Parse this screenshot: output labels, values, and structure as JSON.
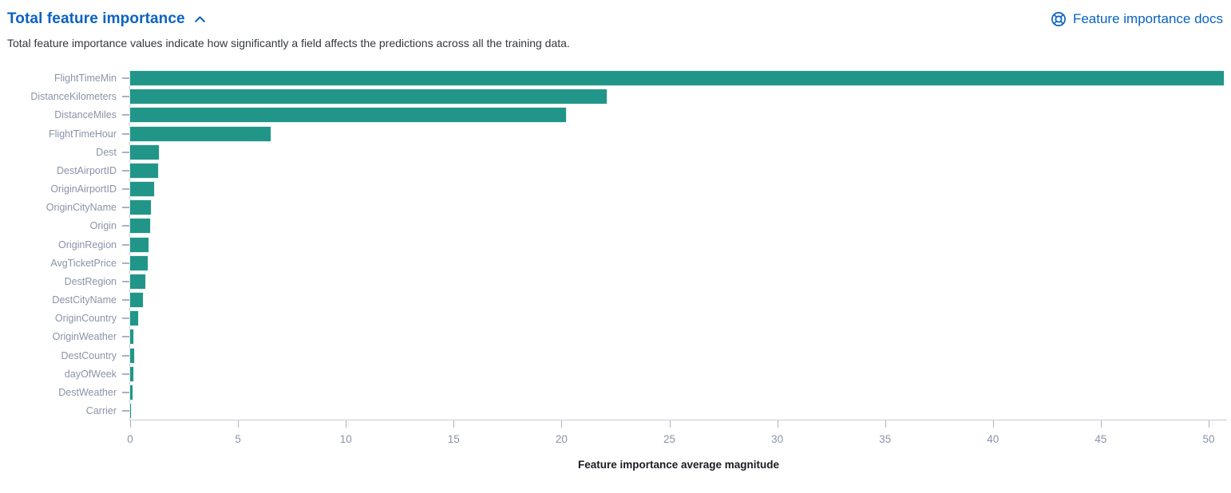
{
  "header": {
    "title": "Total feature importance",
    "collapse_icon": "chevron-up-icon",
    "docs_link_label": "Feature importance docs",
    "docs_icon": "help-docs-icon",
    "link_color": "#0a62c2"
  },
  "description": "Total feature importance values indicate how significantly a field affects the predictions across all the training data.",
  "chart_data": {
    "type": "bar",
    "orientation": "horizontal",
    "title": "",
    "xlabel": "Feature importance average magnitude",
    "ylabel": "",
    "categories": [
      "FlightTimeMin",
      "DistanceKilometers",
      "DistanceMiles",
      "FlightTimeHour",
      "Dest",
      "DestAirportID",
      "OriginAirportID",
      "OriginCityName",
      "Origin",
      "OriginRegion",
      "AvgTicketPrice",
      "DestRegion",
      "DestCityName",
      "OriginCountry",
      "OriginWeather",
      "DestCountry",
      "dayOfWeek",
      "DestWeather",
      "Carrier"
    ],
    "values": [
      50.7,
      22.1,
      20.2,
      6.5,
      1.35,
      1.3,
      1.1,
      0.97,
      0.93,
      0.85,
      0.8,
      0.7,
      0.58,
      0.38,
      0.16,
      0.17,
      0.16,
      0.12,
      0.03
    ],
    "x_ticks": [
      0,
      5,
      10,
      15,
      20,
      25,
      30,
      35,
      40,
      45,
      50
    ],
    "xlim": [
      0,
      50.85
    ],
    "grid": "off",
    "legend": "none",
    "bar_color": "#219688",
    "axis_label_color": "#8a93a8",
    "axis_line_color": "#c6cad3"
  }
}
